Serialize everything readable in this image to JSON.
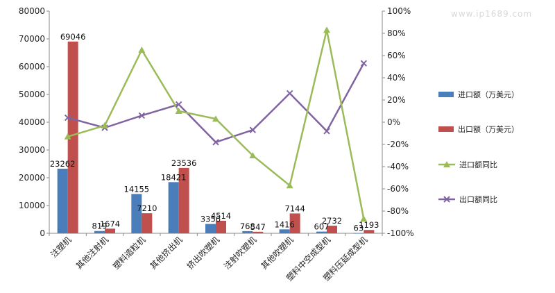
{
  "watermark": "www.ip1689.com",
  "chart_data": {
    "type": "bar+line",
    "categories": [
      "注塑机",
      "其他注射机",
      "塑料造粒机",
      "其他挤出机",
      "挤出吹塑机",
      "注射吹塑机",
      "其他吹塑机",
      "塑料中空成型机",
      "塑料压延成型机"
    ],
    "series": [
      {
        "name": "进口额（万美元）",
        "kind": "bar",
        "axis": "left",
        "color": "#4a7ebb",
        "values": [
          23262,
          819,
          14155,
          18421,
          3356,
          768,
          1416,
          607,
          63
        ]
      },
      {
        "name": "出口额（万美元）",
        "kind": "bar",
        "axis": "left",
        "color": "#c0504d",
        "values": [
          69046,
          1674,
          7210,
          23536,
          4514,
          547,
          7144,
          2732,
          1193
        ]
      },
      {
        "name": "进口额同比",
        "kind": "line",
        "axis": "right",
        "color": "#9bbb59",
        "marker": "triangle",
        "values": [
          -13,
          -3,
          65,
          10,
          3,
          -30,
          -57,
          83,
          -87
        ]
      },
      {
        "name": "出口额同比",
        "kind": "line",
        "axis": "right",
        "color": "#8064a2",
        "marker": "x",
        "values": [
          4,
          -5,
          6,
          16,
          -18,
          -7,
          26,
          -8,
          53
        ]
      }
    ],
    "left_axis": {
      "min": 0,
      "max": 80000,
      "step": 10000,
      "ticks": [
        "0",
        "10000",
        "20000",
        "30000",
        "40000",
        "50000",
        "60000",
        "70000",
        "80000"
      ]
    },
    "right_axis": {
      "min": -100,
      "max": 100,
      "step": 20,
      "ticks": [
        "-100%",
        "-80%",
        "-60%",
        "-40%",
        "-20%",
        "0%",
        "20%",
        "40%",
        "60%",
        "80%",
        "100%"
      ]
    },
    "data_labels": [
      [
        "23262",
        "69046"
      ],
      [
        "819",
        "1674"
      ],
      [
        "14155",
        "7210"
      ],
      [
        "18421",
        "23536"
      ],
      [
        "3356",
        "4514"
      ],
      [
        "768",
        "547"
      ],
      [
        "1416",
        "7144"
      ],
      [
        "607",
        "2732"
      ],
      [
        "63",
        "1193"
      ]
    ],
    "legend": [
      {
        "label": "进口额（万美元）",
        "style": "bar",
        "color": "#4a7ebb"
      },
      {
        "label": "出口额（万美元）",
        "style": "bar",
        "color": "#c0504d"
      },
      {
        "label": "进口额同比",
        "style": "line-triangle",
        "color": "#9bbb59"
      },
      {
        "label": "出口额同比",
        "style": "line-x",
        "color": "#8064a2"
      }
    ],
    "legend_position": "right",
    "grid": false
  }
}
